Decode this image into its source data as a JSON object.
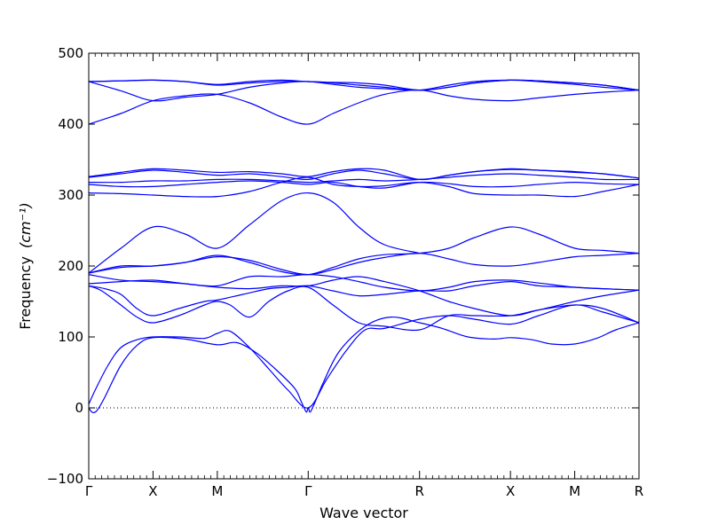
{
  "chart_data": {
    "type": "line",
    "title": "",
    "xlabel": "Wave vector",
    "ylabel": "Frequency",
    "ylabel_unit": "(cm⁻¹)",
    "ylim": [
      -100,
      500
    ],
    "yticks": [
      -100,
      0,
      100,
      200,
      300,
      400,
      500
    ],
    "x_range": [
      0,
      8.5
    ],
    "q_points": [
      {
        "label": "Γ",
        "x": 0
      },
      {
        "label": "X",
        "x": 1
      },
      {
        "label": "M",
        "x": 2
      },
      {
        "label": "Γ",
        "x": 3.414
      },
      {
        "label": "R",
        "x": 5.146
      },
      {
        "label": "X",
        "x": 6.56
      },
      {
        "label": "M",
        "x": 7.56
      },
      {
        "label": "R",
        "x": 8.56
      }
    ],
    "zero_line": true,
    "line_color": "#0000ff",
    "series": [
      {
        "x": [
          0,
          0.05,
          0.1,
          0.15,
          0.25,
          0.5,
          0.75,
          1.0,
          1.5,
          2.0,
          2.3,
          2.6,
          2.9,
          3.2,
          3.3,
          3.36,
          3.39,
          3.414,
          3.44,
          3.47,
          3.53,
          3.65,
          3.9,
          4.3,
          4.7,
          5.146,
          5.5,
          5.9,
          6.3,
          6.56,
          6.9,
          7.2,
          7.56,
          7.9,
          8.2,
          8.56
        ],
        "y": [
          0,
          -6,
          -6,
          -1,
          15,
          60,
          88,
          99,
          97,
          89,
          92,
          78,
          55,
          28,
          10,
          -2,
          -6,
          0,
          -6,
          -2,
          10,
          36,
          80,
          115,
          128,
          120,
          112,
          100,
          97,
          99,
          96,
          90,
          90,
          98,
          110,
          120
        ]
      },
      {
        "x": [
          0,
          0.1,
          0.3,
          0.5,
          0.75,
          1.0,
          1.4,
          1.8,
          2.0,
          2.2,
          2.5,
          2.8,
          3.1,
          3.414,
          3.7,
          4.0,
          4.3,
          4.6,
          5.146,
          5.6,
          6.0,
          6.56,
          7.0,
          7.56,
          8.0,
          8.56
        ],
        "y": [
          5,
          25,
          60,
          85,
          96,
          100,
          100,
          98,
          105,
          108,
          85,
          55,
          25,
          0,
          40,
          80,
          110,
          112,
          125,
          130,
          125,
          118,
          130,
          145,
          135,
          120
        ]
      },
      {
        "x": [
          0,
          0.2,
          0.5,
          0.75,
          1.0,
          1.4,
          1.8,
          2.0,
          2.2,
          2.5,
          2.8,
          3.1,
          3.414,
          3.8,
          4.2,
          4.6,
          5.146,
          5.6,
          6.0,
          6.56,
          7.0,
          7.56,
          8.0,
          8.56
        ],
        "y": [
          172,
          165,
          145,
          128,
          120,
          130,
          145,
          150,
          145,
          128,
          150,
          165,
          170,
          145,
          120,
          115,
          110,
          130,
          130,
          130,
          138,
          145,
          140,
          120
        ]
      },
      {
        "x": [
          0,
          0.25,
          0.5,
          0.75,
          1.0,
          1.4,
          1.8,
          2.0,
          2.4,
          2.8,
          3.1,
          3.414,
          3.8,
          4.2,
          4.6,
          5.146,
          5.6,
          6.0,
          6.56,
          7.0,
          7.56,
          8.0,
          8.56
        ],
        "y": [
          172,
          168,
          160,
          140,
          130,
          140,
          150,
          152,
          160,
          168,
          170,
          172,
          165,
          158,
          160,
          165,
          165,
          172,
          178,
          172,
          170,
          168,
          166
        ]
      },
      {
        "x": [
          0,
          0.5,
          1.0,
          1.5,
          2.0,
          2.5,
          3.0,
          3.414,
          3.8,
          4.2,
          4.6,
          5.146,
          5.6,
          6.0,
          6.56,
          7.0,
          7.56,
          8.0,
          8.56
        ],
        "y": [
          175,
          178,
          180,
          175,
          170,
          168,
          172,
          172,
          180,
          185,
          178,
          165,
          150,
          140,
          130,
          138,
          150,
          158,
          166
        ]
      },
      {
        "x": [
          0,
          0.5,
          1.0,
          1.5,
          2.0,
          2.5,
          3.0,
          3.414,
          3.8,
          4.2,
          4.6,
          5.146,
          5.6,
          6.0,
          6.56,
          7.0,
          7.56,
          8.0,
          8.56
        ],
        "y": [
          188,
          180,
          178,
          175,
          172,
          185,
          185,
          188,
          185,
          178,
          170,
          165,
          170,
          178,
          180,
          176,
          170,
          168,
          166
        ]
      },
      {
        "x": [
          0,
          0.5,
          1.0,
          1.5,
          2.0,
          2.5,
          3.0,
          3.414,
          3.8,
          4.2,
          4.6,
          5.146,
          5.6,
          6.0,
          6.56,
          7.0,
          7.56,
          8.0,
          8.56
        ],
        "y": [
          190,
          198,
          200,
          205,
          213,
          208,
          195,
          188,
          195,
          205,
          212,
          218,
          210,
          202,
          200,
          205,
          213,
          215,
          218
        ]
      },
      {
        "x": [
          0,
          0.5,
          1.0,
          1.5,
          2.0,
          2.5,
          3.0,
          3.414,
          3.8,
          4.2,
          4.6,
          5.146,
          5.6,
          6.0,
          6.56,
          7.0,
          7.56,
          8.0,
          8.56
        ],
        "y": [
          190,
          200,
          200,
          205,
          215,
          205,
          192,
          188,
          198,
          210,
          216,
          218,
          225,
          240,
          255,
          245,
          225,
          222,
          218
        ]
      },
      {
        "x": [
          0,
          0.5,
          1.0,
          1.5,
          2.0,
          2.5,
          3.0,
          3.414,
          3.8,
          4.2,
          4.6,
          5.146
        ],
        "y": [
          190,
          225,
          255,
          245,
          225,
          258,
          292,
          303,
          290,
          255,
          230,
          218
        ]
      },
      {
        "x": [
          0,
          0.5,
          1.0,
          1.5,
          2.0,
          2.5,
          3.0,
          3.414,
          3.8,
          4.2,
          4.6,
          5.146,
          5.6,
          6.0,
          6.56,
          7.0,
          7.56,
          8.0,
          8.56
        ],
        "y": [
          303,
          302,
          300,
          298,
          298,
          305,
          318,
          325,
          315,
          312,
          313,
          318,
          312,
          302,
          300,
          300,
          298,
          305,
          315
        ]
      },
      {
        "x": [
          0,
          0.5,
          1.0,
          1.5,
          2.0,
          2.5,
          3.0,
          3.414,
          3.8,
          4.2,
          4.6,
          5.146,
          5.6,
          6.0,
          6.56,
          7.0,
          7.56,
          8.0,
          8.56
        ],
        "y": [
          315,
          312,
          312,
          315,
          318,
          320,
          318,
          315,
          318,
          312,
          310,
          318,
          316,
          312,
          312,
          315,
          318,
          316,
          315
        ]
      },
      {
        "x": [
          0,
          0.5,
          1.0,
          1.5,
          2.0,
          2.5,
          3.0,
          3.414,
          3.8,
          4.2,
          4.6,
          5.146,
          5.6,
          6.0,
          6.56,
          7.0,
          7.56,
          8.0,
          8.56
        ],
        "y": [
          318,
          318,
          320,
          320,
          322,
          322,
          320,
          318,
          320,
          322,
          320,
          322,
          325,
          328,
          330,
          328,
          325,
          322,
          322
        ]
      },
      {
        "x": [
          0,
          0.5,
          1.0,
          1.5,
          2.0,
          2.5,
          3.0,
          3.414,
          3.8,
          4.2,
          4.6,
          5.146,
          5.6,
          6.0,
          6.56,
          7.0,
          7.56,
          8.0,
          8.56
        ],
        "y": [
          325,
          330,
          335,
          332,
          328,
          330,
          326,
          322,
          330,
          335,
          330,
          322,
          328,
          333,
          336,
          335,
          332,
          330,
          324
        ]
      },
      {
        "x": [
          0,
          0.5,
          1.0,
          1.5,
          2.0,
          2.5,
          3.0,
          3.414,
          3.8,
          4.2,
          4.6,
          5.146,
          5.6,
          6.0,
          6.56,
          7.0,
          7.56,
          8.0,
          8.56
        ],
        "y": [
          326,
          332,
          337,
          335,
          332,
          333,
          330,
          326,
          333,
          337,
          335,
          322,
          328,
          333,
          337,
          335,
          333,
          330,
          324
        ]
      },
      {
        "x": [
          0,
          0.5,
          1.0,
          1.5,
          2.0,
          2.5,
          3.0,
          3.414,
          3.8,
          4.2,
          4.6,
          5.146,
          5.6,
          6.0,
          6.56,
          7.0,
          7.56,
          8.0,
          8.56
        ],
        "y": [
          400,
          415,
          433,
          440,
          442,
          430,
          410,
          400,
          415,
          430,
          442,
          448,
          440,
          435,
          433,
          437,
          442,
          445,
          448
        ]
      },
      {
        "x": [
          0,
          0.5,
          1.0,
          1.5,
          2.0,
          2.5,
          3.0,
          3.414,
          3.8,
          4.2,
          4.6,
          5.146,
          5.6,
          6.0,
          6.56,
          7.0,
          7.56,
          8.0,
          8.56
        ],
        "y": [
          460,
          447,
          433,
          438,
          442,
          452,
          458,
          460,
          456,
          452,
          450,
          448,
          455,
          460,
          462,
          460,
          456,
          452,
          448
        ]
      },
      {
        "x": [
          0,
          0.5,
          1.0,
          1.5,
          2.0,
          2.5,
          3.0,
          3.414,
          3.8,
          4.2,
          4.6,
          5.146,
          5.6,
          6.0,
          6.56,
          7.0,
          7.56,
          8.0,
          8.56
        ],
        "y": [
          460,
          461,
          462,
          460,
          455,
          458,
          460,
          460,
          458,
          455,
          452,
          448,
          452,
          458,
          462,
          461,
          458,
          455,
          448
        ]
      },
      {
        "x": [
          0,
          0.5,
          1.0,
          1.5,
          2.0,
          2.5,
          3.0,
          3.414,
          3.8,
          4.2,
          4.6,
          5.146,
          5.6,
          6.0,
          6.56,
          7.0,
          7.56,
          8.0,
          8.56
        ],
        "y": [
          460,
          461,
          462,
          460,
          456,
          460,
          462,
          460,
          459,
          458,
          455,
          448,
          452,
          458,
          462,
          461,
          458,
          455,
          448
        ]
      }
    ]
  }
}
